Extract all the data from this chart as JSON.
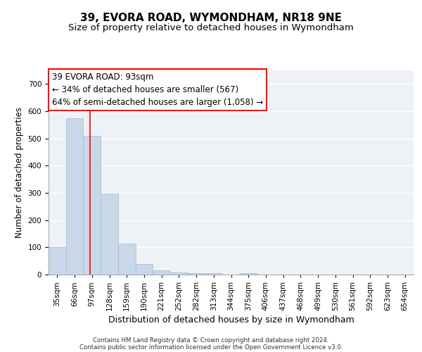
{
  "title1": "39, EVORA ROAD, WYMONDHAM, NR18 9NE",
  "title2": "Size of property relative to detached houses in Wymondham",
  "xlabel": "Distribution of detached houses by size in Wymondham",
  "ylabel": "Number of detached properties",
  "footer1": "Contains HM Land Registry data © Crown copyright and database right 2024.",
  "footer2": "Contains public sector information licensed under the Open Government Licence v3.0.",
  "bar_labels": [
    "35sqm",
    "66sqm",
    "97sqm",
    "128sqm",
    "159sqm",
    "190sqm",
    "221sqm",
    "252sqm",
    "282sqm",
    "313sqm",
    "344sqm",
    "375sqm",
    "406sqm",
    "437sqm",
    "468sqm",
    "499sqm",
    "530sqm",
    "561sqm",
    "592sqm",
    "623sqm",
    "654sqm"
  ],
  "bar_values": [
    100,
    575,
    510,
    298,
    115,
    38,
    15,
    8,
    5,
    5,
    0,
    5,
    0,
    0,
    0,
    0,
    0,
    0,
    0,
    0,
    0
  ],
  "bar_color": "#c8d8e8",
  "bar_edge_color": "#a0b8cc",
  "property_line_x": 1.87,
  "property_line_color": "red",
  "annotation_text": "39 EVORA ROAD: 93sqm\n← 34% of detached houses are smaller (567)\n64% of semi-detached houses are larger (1,058) →",
  "annotation_box_color": "white",
  "annotation_box_edge_color": "red",
  "ylim": [
    0,
    750
  ],
  "yticks": [
    0,
    100,
    200,
    300,
    400,
    500,
    600,
    700
  ],
  "background_color": "#eef2f7",
  "grid_color": "white",
  "title1_fontsize": 11,
  "title2_fontsize": 9.5,
  "xlabel_fontsize": 9,
  "ylabel_fontsize": 8.5,
  "annotation_fontsize": 8.5,
  "tick_fontsize": 7.5
}
